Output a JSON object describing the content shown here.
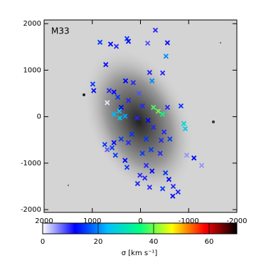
{
  "chart_data": {
    "type": "scatter",
    "annotation": "M33",
    "xlim": [
      2000,
      -2000
    ],
    "ylim": [
      -2060,
      2080
    ],
    "xticks": [
      2000,
      1000,
      0,
      -1000,
      -2000
    ],
    "yticks": [
      -2000,
      -1000,
      0,
      1000,
      2000
    ],
    "x": [
      840,
      620,
      500,
      280,
      250,
      -150,
      -310,
      -560,
      -530,
      -460,
      -190,
      -240,
      150,
      310,
      720,
      990,
      970,
      650,
      550,
      690,
      470,
      440,
      550,
      320,
      430,
      400,
      250,
      30,
      -40,
      70,
      -160,
      -270,
      -460,
      -370,
      -270,
      -560,
      -840,
      -900,
      -930,
      -490,
      -610,
      -430,
      -120,
      -220,
      -410,
      -40,
      180,
      250,
      400,
      550,
      690,
      590,
      520,
      320,
      280,
      -120,
      10,
      -90,
      60,
      -190,
      -240,
      -520,
      -590,
      -680,
      -460,
      -780,
      -670,
      -960,
      -1270,
      -1110,
      740
    ],
    "y": [
      1600,
      1560,
      1510,
      1680,
      1620,
      1580,
      1860,
      1590,
      1300,
      940,
      950,
      770,
      730,
      770,
      1120,
      700,
      560,
      560,
      530,
      300,
      420,
      120,
      50,
      10,
      -30,
      200,
      350,
      500,
      230,
      -30,
      -80,
      -230,
      50,
      120,
      200,
      200,
      230,
      -150,
      -260,
      -330,
      -480,
      -510,
      -480,
      -710,
      -790,
      -790,
      -380,
      -560,
      -480,
      -560,
      -710,
      -670,
      -830,
      -940,
      -1090,
      -1050,
      -1260,
      -1320,
      -1440,
      -1520,
      -1170,
      -1210,
      -1350,
      -1500,
      -1550,
      -1620,
      -1710,
      -830,
      -1050,
      -890,
      -600
    ],
    "sigma": [
      15,
      12,
      10,
      15,
      12,
      8,
      10,
      12,
      20,
      10,
      10,
      20,
      10,
      12,
      12,
      15,
      12,
      10,
      12,
      1,
      15,
      25,
      23,
      22,
      25,
      12,
      10,
      8,
      10,
      10,
      12,
      10,
      35,
      40,
      38,
      10,
      15,
      28,
      25,
      10,
      15,
      10,
      15,
      15,
      10,
      15,
      15,
      10,
      15,
      12,
      8,
      15,
      15,
      12,
      15,
      10,
      10,
      10,
      10,
      10,
      12,
      15,
      12,
      10,
      15,
      10,
      12,
      5,
      5,
      12,
      15
    ],
    "colorbar": {
      "clim": [
        0,
        70
      ],
      "ticks": [
        0,
        20,
        40,
        60
      ],
      "label": "σ [km s⁻¹]",
      "colors": [
        "#ffffff",
        "#0000ff",
        "#00bfff",
        "#00ff80",
        "#ffff00",
        "#ff0000",
        "#000000"
      ]
    }
  }
}
